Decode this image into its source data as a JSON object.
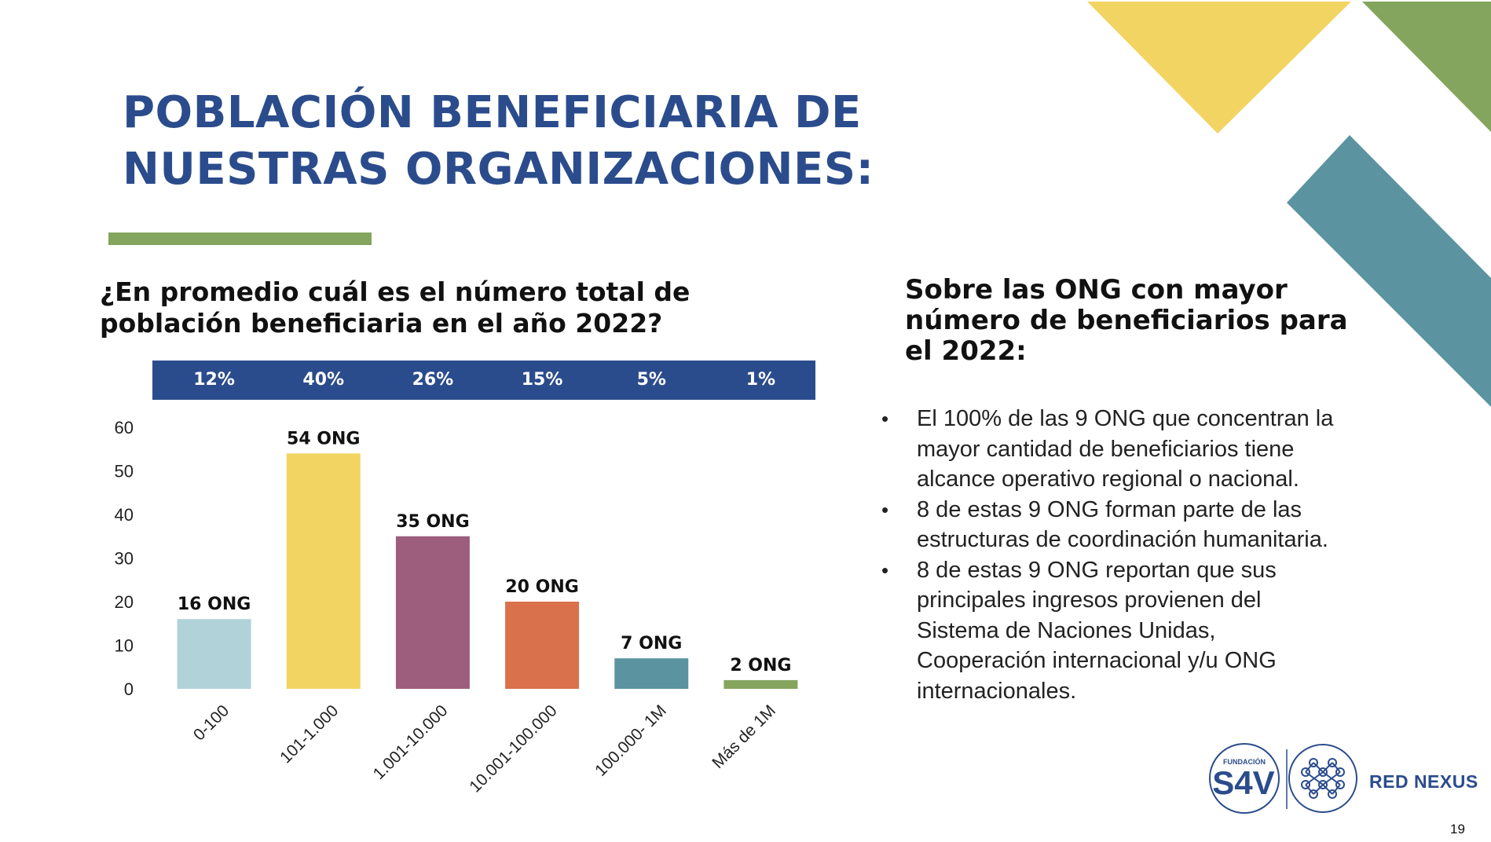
{
  "slide": {
    "title_lines": [
      "POBLACIÓN BENEFICIARIA DE",
      "NUESTRAS ORGANIZACIONES:"
    ],
    "question_lines": [
      "¿En promedio cuál es el número total de",
      "población beneficiaria en el año 2022?"
    ],
    "page_number": "19"
  },
  "colors": {
    "title_blue": "#2b4c8c",
    "accent_green": "#84a55e",
    "accent_yellow": "#f2d462",
    "accent_teal": "#5b93a0"
  },
  "chart_data": {
    "type": "bar",
    "categories": [
      "0-100",
      "101-1.000",
      "1.001-10.000",
      "10.001-100.000",
      "100.000- 1M",
      "Más de 1M"
    ],
    "values": [
      16,
      54,
      35,
      20,
      7,
      2
    ],
    "data_labels": [
      "16 ONG",
      "54 ONG",
      "35 ONG",
      "20 ONG",
      "7 ONG",
      "2 ONG"
    ],
    "percentages": [
      "12%",
      "40%",
      "26%",
      "15%",
      "5%",
      "1%"
    ],
    "bar_colors": [
      "#b1d2d9",
      "#f2d462",
      "#9d5e7d",
      "#d9714c",
      "#5b93a0",
      "#84a55e"
    ],
    "ylim": [
      0,
      60
    ],
    "yticks": [
      0,
      10,
      20,
      30,
      40,
      50,
      60
    ],
    "grid": false,
    "legend": "none"
  },
  "sidebar": {
    "heading_lines": [
      "Sobre las ONG con mayor",
      "número de beneficiarios para",
      "el 2022:"
    ],
    "bullet_symbol": "•",
    "bullets": [
      [
        "El 100% de las 9 ONG que concentran la",
        "mayor cantidad de beneficiarios tiene",
        "alcance operativo regional o nacional."
      ],
      [
        "8 de estas 9 ONG forman parte de las",
        "estructuras de coordinación humanitaria."
      ],
      [
        "8 de estas 9 ONG reportan que sus",
        "principales ingresos provienen del",
        "Sistema de Naciones Unidas,",
        "Cooperación internacional y/u ONG",
        "internacionales."
      ]
    ]
  },
  "branding": {
    "logo_small": "FUNDACIÓN",
    "logo_main": "S4V",
    "brand_name": "RED NEXUS"
  }
}
